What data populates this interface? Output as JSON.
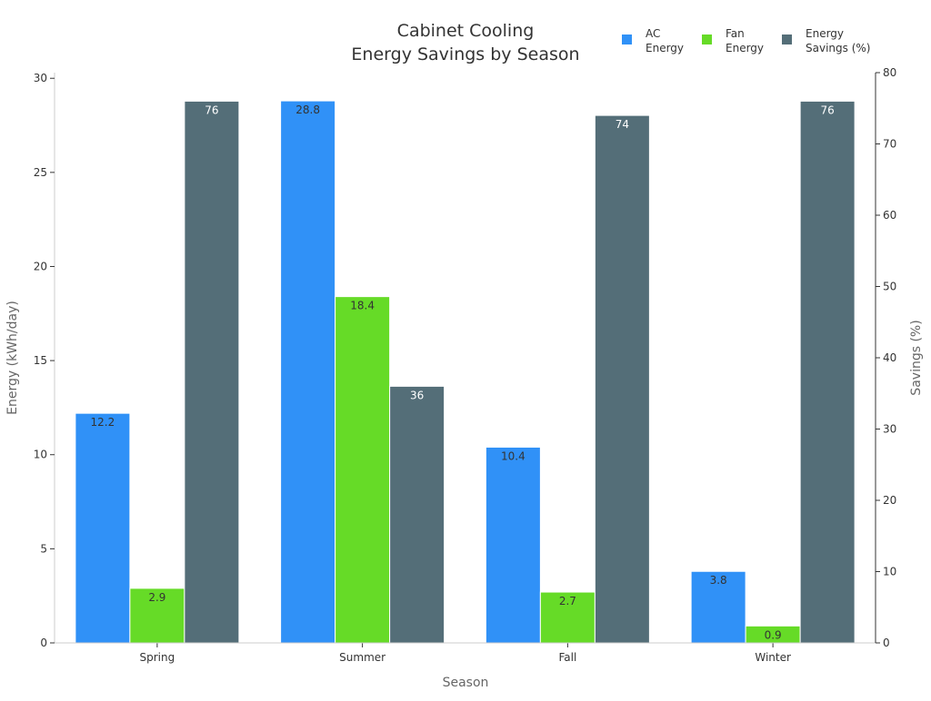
{
  "chart_data": {
    "type": "bar",
    "title": [
      "Cabinet Cooling",
      "Energy Savings by Season"
    ],
    "xlabel": "Season",
    "ylabel": "Energy (kWh/day)",
    "y2label": "Savings (%)",
    "categories": [
      "Spring",
      "Summer",
      "Fall",
      "Winter"
    ],
    "ylim": [
      0,
      30.3
    ],
    "y2lim": [
      0,
      80
    ],
    "yticks": [
      0,
      5,
      10,
      15,
      20,
      25,
      30
    ],
    "y2ticks": [
      0,
      10,
      20,
      30,
      40,
      50,
      60,
      70,
      80
    ],
    "grid": false,
    "legend_position": "top-right",
    "series": [
      {
        "name": "AC\nEnergy",
        "axis": "left",
        "color": "#3091f7",
        "values": [
          12.2,
          28.8,
          10.4,
          3.8
        ],
        "labels": [
          "12.2",
          "28.8",
          "10.4",
          "3.8"
        ],
        "label_color": "#333333"
      },
      {
        "name": "Fan\nEnergy",
        "axis": "left",
        "color": "#66db27",
        "values": [
          2.9,
          18.4,
          2.7,
          0.9
        ],
        "labels": [
          "2.9",
          "18.4",
          "2.7",
          "0.9"
        ],
        "label_color": "#333333"
      },
      {
        "name": "Energy\nSavings (%)",
        "axis": "right",
        "color": "#546e78",
        "values": [
          76,
          36,
          74,
          76
        ],
        "labels": [
          "76",
          "36",
          "74",
          "76"
        ],
        "label_color": "#ffffff"
      }
    ]
  }
}
